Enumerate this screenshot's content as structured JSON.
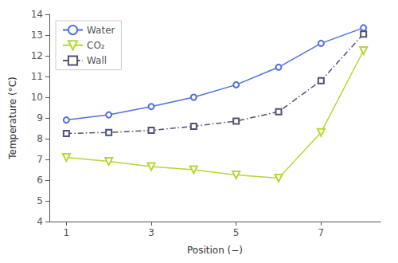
{
  "chart_data": {
    "type": "line",
    "x": [
      1,
      2,
      3,
      4,
      5,
      6,
      7,
      8
    ],
    "series": [
      {
        "name": "Water",
        "values": [
          8.9,
          9.15,
          9.55,
          10.0,
          10.6,
          11.45,
          12.6,
          13.35
        ],
        "marker": "circle",
        "line_style": "solid"
      },
      {
        "name": "CO₂",
        "values": [
          7.1,
          6.9,
          6.65,
          6.5,
          6.25,
          6.1,
          8.3,
          12.25
        ],
        "marker": "triangle-down",
        "line_style": "solid"
      },
      {
        "name": "Wall",
        "values": [
          8.25,
          8.3,
          8.4,
          8.6,
          8.85,
          9.3,
          10.8,
          13.05
        ],
        "marker": "square",
        "line_style": "dashdot"
      }
    ],
    "xlabel": "Position (−)",
    "ylabel": "Temperature (°C)",
    "xlim": [
      0.6,
      8.4
    ],
    "xticks": [
      1,
      3,
      5,
      7
    ],
    "ylim": [
      4,
      14
    ],
    "yticks": [
      4,
      5,
      6,
      7,
      8,
      9,
      10,
      11,
      12,
      13,
      14
    ],
    "legend": "upper left",
    "grid": false
  }
}
